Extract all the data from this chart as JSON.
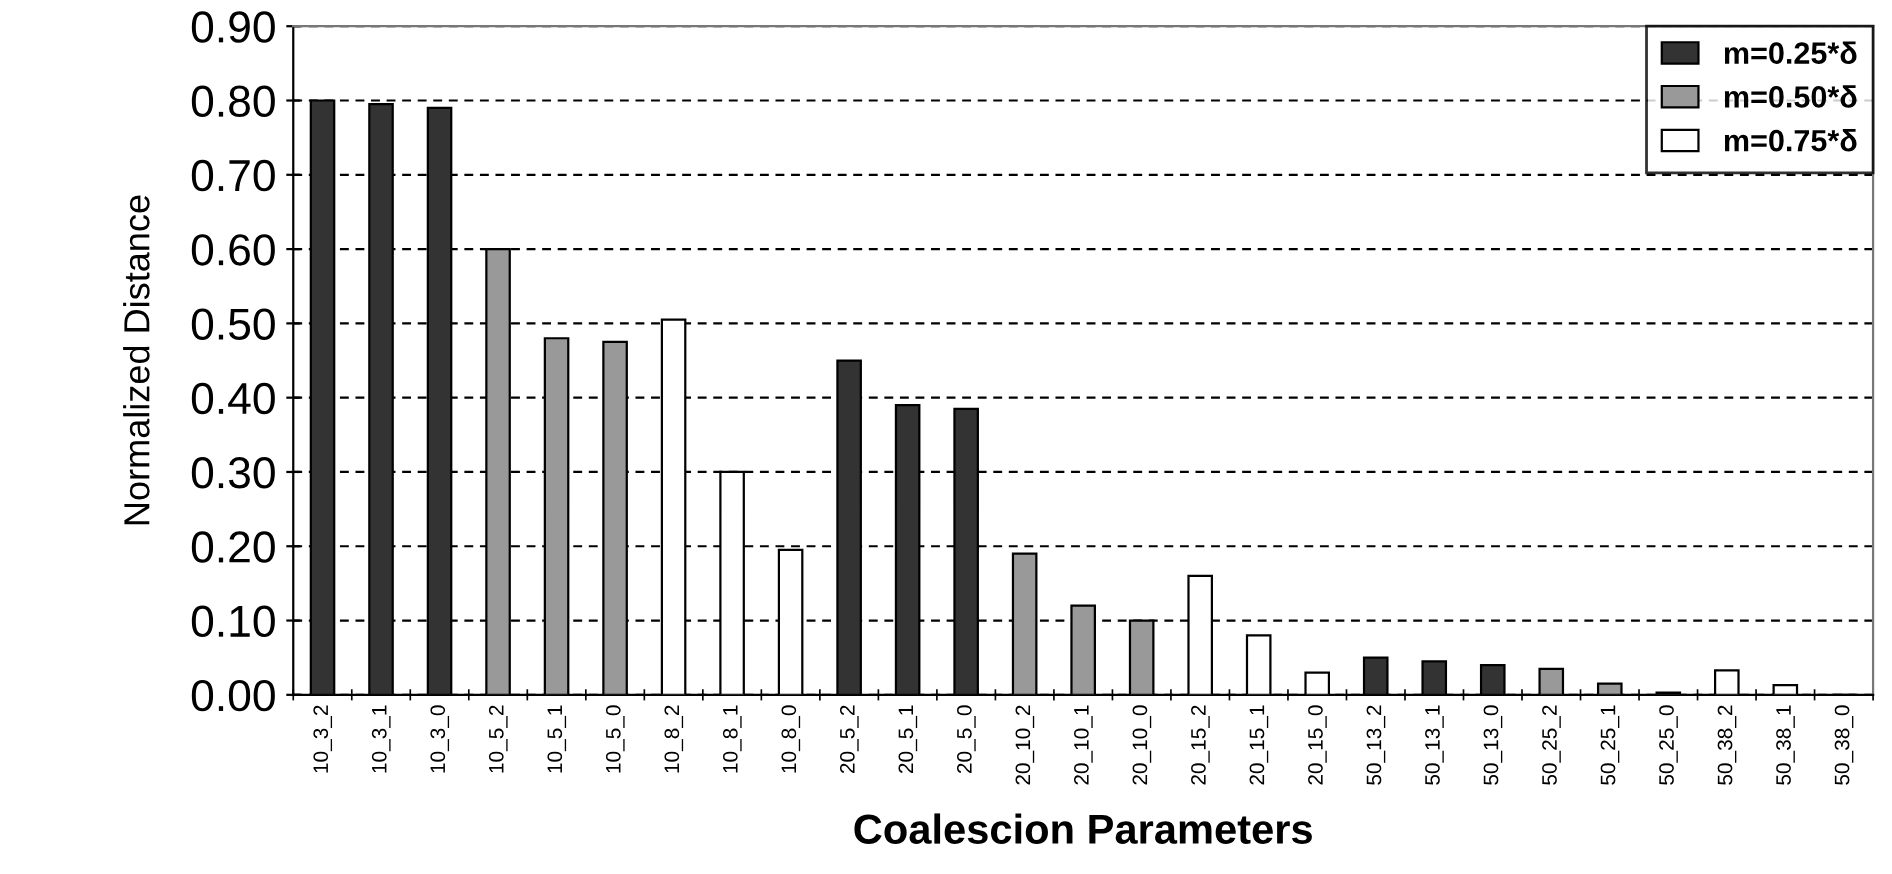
{
  "chart_data": {
    "type": "bar",
    "xlabel": "Coalescion Parameters",
    "ylabel": "Normalized Distance",
    "categories": [
      "10_3_2",
      "10_3_1",
      "10_3_0",
      "10_5_2",
      "10_5_1",
      "10_5_0",
      "10_8_2",
      "10_8_1",
      "10_8_0",
      "20_5_2",
      "20_5_1",
      "20_5_0",
      "20_10_2",
      "20_10_1",
      "20_10_0",
      "20_15_2",
      "20_15_1",
      "20_15_0",
      "50_13_2",
      "50_13_1",
      "50_13_0",
      "50_25_2",
      "50_25_1",
      "50_25_0",
      "50_38_2",
      "50_38_1",
      "50_38_0"
    ],
    "series": [
      {
        "name": "m=0.25*δ",
        "color": "#333333",
        "values": [
          0.8,
          0.795,
          0.79,
          null,
          null,
          null,
          null,
          null,
          null,
          0.45,
          0.39,
          0.385,
          null,
          null,
          null,
          null,
          null,
          null,
          0.05,
          0.045,
          0.04,
          null,
          null,
          null,
          null,
          null,
          null
        ]
      },
      {
        "name": "m=0.50*δ",
        "color": "#999999",
        "values": [
          null,
          null,
          null,
          0.6,
          0.48,
          0.475,
          null,
          null,
          null,
          null,
          null,
          null,
          0.19,
          0.12,
          0.1,
          null,
          null,
          null,
          null,
          null,
          null,
          0.035,
          0.015,
          0.003,
          null,
          null,
          null
        ]
      },
      {
        "name": "m=0.75*δ",
        "color": "#ffffff",
        "values": [
          null,
          null,
          null,
          null,
          null,
          null,
          0.505,
          0.3,
          0.195,
          null,
          null,
          null,
          null,
          null,
          null,
          0.16,
          0.08,
          0.03,
          null,
          null,
          null,
          null,
          null,
          null,
          0.033,
          0.013,
          0.0
        ]
      }
    ],
    "ylim": [
      0,
      0.9
    ],
    "yticks": [
      {
        "value": 0,
        "label": "0.00"
      },
      {
        "value": 0.1,
        "label": "0.10"
      },
      {
        "value": 0.2,
        "label": "0.20"
      },
      {
        "value": 0.3,
        "label": "0.30"
      },
      {
        "value": 0.4,
        "label": "0.40"
      },
      {
        "value": 0.5,
        "label": "0.50"
      },
      {
        "value": 0.6,
        "label": "0.60"
      },
      {
        "value": 0.7,
        "label": "0.70"
      },
      {
        "value": 0.8,
        "label": "0.80"
      },
      {
        "value": 0.9,
        "label": "0.90"
      }
    ],
    "grid": "y",
    "legend": "top right"
  }
}
